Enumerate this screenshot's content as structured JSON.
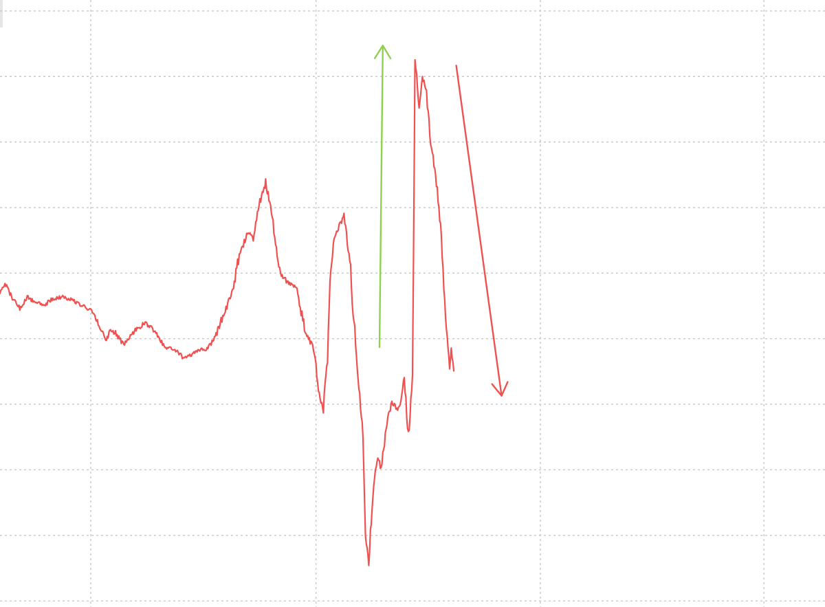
{
  "chart_data": {
    "type": "line",
    "title": "",
    "xlabel": "",
    "ylabel": "",
    "grid": true,
    "legend": "none",
    "xlim": [
      0,
      100
    ],
    "ylim": [
      0,
      100
    ],
    "x_gridlines": [
      11,
      38.3,
      65.5,
      92.6
    ],
    "y_gridlines": [
      1,
      11.8,
      22.6,
      33.4,
      44.2,
      55,
      65.8,
      76.6,
      87.4,
      98.2
    ],
    "series": [
      {
        "color": "#f05050",
        "points": [
          [
            0,
            52
          ],
          [
            0.7,
            53.3
          ],
          [
            1.5,
            50.7
          ],
          [
            2.4,
            49.3
          ],
          [
            3.3,
            51.1
          ],
          [
            4.2,
            50.2
          ],
          [
            5.5,
            49.8
          ],
          [
            6.3,
            50.7
          ],
          [
            7.5,
            51.1
          ],
          [
            8.7,
            50.7
          ],
          [
            9.8,
            49.8
          ],
          [
            11,
            48.9
          ],
          [
            12,
            46.6
          ],
          [
            12.8,
            43.9
          ],
          [
            13.5,
            45.9
          ],
          [
            15,
            43.3
          ],
          [
            16,
            45.1
          ],
          [
            17.5,
            46.8
          ],
          [
            18.5,
            45.9
          ],
          [
            19.2,
            44.6
          ],
          [
            20,
            42.6
          ],
          [
            21,
            42.6
          ],
          [
            22.2,
            41
          ],
          [
            23.3,
            41.5
          ],
          [
            24,
            42.4
          ],
          [
            25,
            42.4
          ],
          [
            26,
            44.2
          ],
          [
            27,
            47.9
          ],
          [
            28,
            51.1
          ],
          [
            29,
            57.8
          ],
          [
            30,
            61.6
          ],
          [
            30.7,
            61.1
          ],
          [
            31.5,
            66.7
          ],
          [
            32.2,
            70
          ],
          [
            33,
            64.2
          ],
          [
            33.5,
            58.9
          ],
          [
            34,
            54.9
          ],
          [
            35,
            53.3
          ],
          [
            36,
            52.4
          ],
          [
            37,
            45.1
          ],
          [
            37.8,
            43.3
          ],
          [
            38.3,
            39.7
          ],
          [
            38.7,
            34.9
          ],
          [
            39.2,
            32.8
          ],
          [
            39.7,
            41
          ],
          [
            40,
            54
          ],
          [
            40.5,
            60.2
          ],
          [
            41.3,
            63.3
          ],
          [
            41.7,
            64.2
          ],
          [
            42.5,
            56
          ],
          [
            42.8,
            47.9
          ],
          [
            43,
            46.4
          ],
          [
            43.3,
            38.6
          ],
          [
            43.8,
            31.7
          ],
          [
            44,
            28.5
          ],
          [
            44.3,
            11.8
          ],
          [
            44.7,
            7.4
          ],
          [
            45.2,
            18.5
          ],
          [
            45.8,
            24.9
          ],
          [
            46.2,
            22.6
          ],
          [
            46.8,
            29.4
          ],
          [
            47.5,
            33.9
          ],
          [
            48.3,
            32.3
          ],
          [
            49,
            37.8
          ],
          [
            49.5,
            28.1
          ],
          [
            50,
            37.7
          ],
          [
            50.2,
            70.5
          ],
          [
            50.3,
            90.8
          ],
          [
            50.8,
            82.3
          ],
          [
            51.2,
            87.4
          ],
          [
            51.7,
            84.7
          ],
          [
            52.2,
            76.6
          ],
          [
            53,
            68.8
          ],
          [
            53.5,
            60.9
          ],
          [
            54,
            47.9
          ],
          [
            54.5,
            39.5
          ],
          [
            54.7,
            42.1
          ],
          [
            55,
            38.9
          ]
        ]
      }
    ],
    "annotations": [
      {
        "type": "arrow",
        "color": "#8fd14f",
        "from": [
          46,
          42.8
        ],
        "to": [
          46.4,
          92.5
        ]
      },
      {
        "type": "arrow",
        "color": "#f05050",
        "from": [
          55.3,
          89.2
        ],
        "to": [
          60.8,
          34.8
        ]
      }
    ]
  }
}
